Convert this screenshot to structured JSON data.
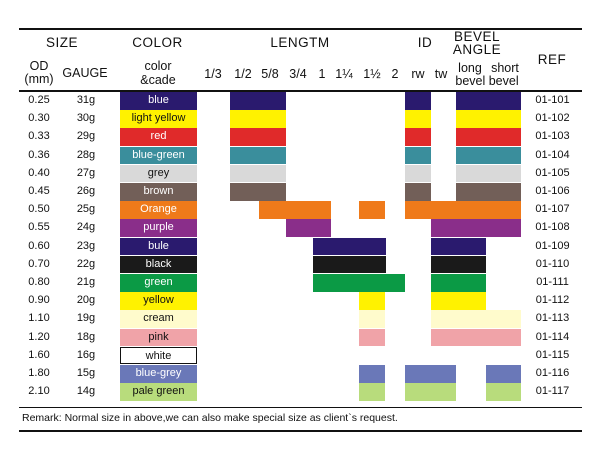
{
  "headers": {
    "size": "SIZE",
    "color": "COLOR",
    "length": "LENGTM",
    "id": "ID",
    "bevel_line1": "BEVEL",
    "bevel_line2": "ANGLE",
    "ref": "REF",
    "od_line1": "OD",
    "od_line2": "(mm)",
    "gauge": "GAUGE",
    "color_line1": "color",
    "color_line2": "&cade",
    "lengths": [
      "1/3",
      "1/2",
      "5/8",
      "3/4",
      "1",
      "1¼",
      "1½",
      "2"
    ],
    "id_cols": [
      "rw",
      "tw"
    ],
    "bevel_long": "long",
    "bevel_short": "short",
    "bevel_word": "bevel bevel"
  },
  "rows": [
    {
      "od": "0.25",
      "gauge": "31g",
      "color": "blue",
      "hex": "#2a1a6e",
      "text": "#ffffff",
      "ref": "01-101"
    },
    {
      "od": "0.30",
      "gauge": "30g",
      "color": "light yellow",
      "hex": "#fff200",
      "text": "#111111",
      "ref": "01-102"
    },
    {
      "od": "0.33",
      "gauge": "29g",
      "color": "red",
      "hex": "#e02a2a",
      "text": "#ffffff",
      "ref": "01-103"
    },
    {
      "od": "0.36",
      "gauge": "28g",
      "color": "blue-green",
      "hex": "#3a8e9c",
      "text": "#ffffff",
      "ref": "01-104"
    },
    {
      "od": "0.40",
      "gauge": "27g",
      "color": "grey",
      "hex": "#d9d9d9",
      "text": "#111111",
      "ref": "01-105"
    },
    {
      "od": "0.45",
      "gauge": "26g",
      "color": "brown",
      "hex": "#725f58",
      "text": "#ffffff",
      "ref": "01-106"
    },
    {
      "od": "0.50",
      "gauge": "25g",
      "color": "Orange",
      "hex": "#ef7a1a",
      "text": "#ffffff",
      "ref": "01-107"
    },
    {
      "od": "0.55",
      "gauge": "24g",
      "color": "purple",
      "hex": "#8a2e8a",
      "text": "#ffffff",
      "ref": "01-108"
    },
    {
      "od": "0.60",
      "gauge": "23g",
      "color": "bule",
      "hex": "#2a1a6e",
      "text": "#ffffff",
      "ref": "01-109"
    },
    {
      "od": "0.70",
      "gauge": "22g",
      "color": "black",
      "hex": "#1a1a1a",
      "text": "#ffffff",
      "ref": "01-110"
    },
    {
      "od": "0.80",
      "gauge": "21g",
      "color": "green",
      "hex": "#0b9a45",
      "text": "#ffffff",
      "ref": "01-111"
    },
    {
      "od": "0.90",
      "gauge": "20g",
      "color": "yellow",
      "hex": "#fff200",
      "text": "#111111",
      "ref": "01-112"
    },
    {
      "od": "1.10",
      "gauge": "19g",
      "color": "cream",
      "hex": "#fffbcc",
      "text": "#111111",
      "ref": "01-113"
    },
    {
      "od": "1.20",
      "gauge": "18g",
      "color": "pink",
      "hex": "#f0a3a8",
      "text": "#111111",
      "ref": "01-114"
    },
    {
      "od": "1.60",
      "gauge": "16g",
      "color": "white",
      "hex": "#ffffff",
      "text": "#111111",
      "ref": "01-115"
    },
    {
      "od": "1.80",
      "gauge": "15g",
      "color": "blue-grey",
      "hex": "#6a78b8",
      "text": "#ffffff",
      "ref": "01-116"
    },
    {
      "od": "2.10",
      "gauge": "14g",
      "color": "pale green",
      "hex": "#b8dc7c",
      "text": "#111111",
      "ref": "01-117"
    }
  ],
  "remark": "Remark: Normal size in above,we can also make special size as client`s request."
}
